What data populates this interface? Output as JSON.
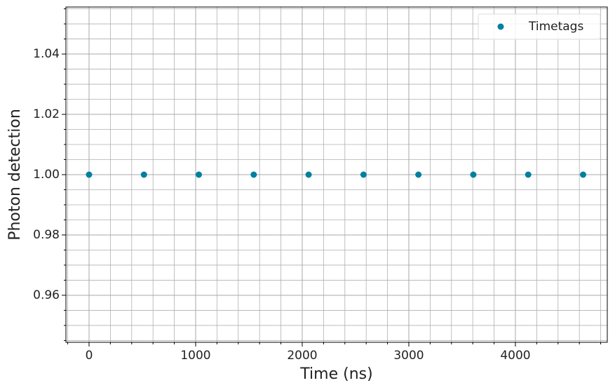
{
  "chart_data": {
    "type": "scatter",
    "xlabel": "Time (ns)",
    "ylabel": "Photon detection",
    "series": [
      {
        "name": "Timetags",
        "color": "#00809f",
        "x": [
          0,
          515,
          1030,
          1545,
          2060,
          2575,
          3090,
          3605,
          4120,
          4635
        ],
        "values": [
          1,
          1,
          1,
          1,
          1,
          1,
          1,
          1,
          1,
          1
        ]
      }
    ],
    "xlim": [
      -217,
      4862
    ],
    "ylim": [
      0.9444,
      1.0556
    ],
    "xticks": [
      0,
      1000,
      2000,
      3000,
      4000
    ],
    "yticks": [
      0.96,
      0.98,
      {
        "value": 1.0,
        "label": "1.00"
      },
      1.02,
      1.04
    ],
    "xminorticks": [
      -200,
      200,
      400,
      600,
      800,
      1200,
      1400,
      1600,
      1800,
      2200,
      2400,
      2600,
      2800,
      3200,
      3400,
      3600,
      3800,
      4200,
      4400,
      4600,
      4800
    ],
    "yminorticks": [
      0.945,
      0.95,
      0.955,
      0.965,
      0.97,
      0.975,
      0.985,
      0.99,
      0.995,
      1.005,
      1.01,
      1.015,
      1.025,
      1.03,
      1.035,
      1.045,
      1.05,
      1.055
    ],
    "grid": true,
    "minor_grid": true,
    "legend": "upper right"
  }
}
